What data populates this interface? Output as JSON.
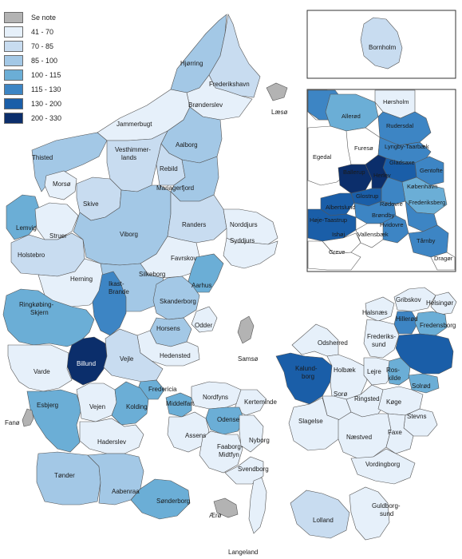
{
  "legend": {
    "items": [
      {
        "label": "Se note",
        "color": "#b3b3b3"
      },
      {
        "label": "41 - 70",
        "color": "#e6f0fa"
      },
      {
        "label": "70 - 85",
        "color": "#c8dcf0"
      },
      {
        "label": "85 - 100",
        "color": "#a3c8e6"
      },
      {
        "label": "100 - 115",
        "color": "#6baed6"
      },
      {
        "label": "115 - 130",
        "color": "#3d85c4"
      },
      {
        "label": "130 - 200",
        "color": "#1a5ea8"
      },
      {
        "label": "200 - 330",
        "color": "#0b2e6b"
      }
    ]
  },
  "labels": {
    "laeso": "Læsø",
    "hjorring": "Hjørring",
    "frederikshavn": "Frederikshavn",
    "bronderslev": "Brønderslev",
    "jammerbugt": "Jammerbugt",
    "thisted": "Thisted",
    "aalborg": "Aalborg",
    "vesthimmerlands1": "Vesthimmer-",
    "vesthimmerlands2": "lands",
    "rebild": "Rebild",
    "mariagerfjord": "Mariagerfjord",
    "morso": "Morsø",
    "skive": "Skive",
    "randers": "Randers",
    "norddjurs": "Norddjurs",
    "syddjurs": "Syddjurs",
    "lemvig": "Lemvig",
    "struer": "Struer",
    "viborg": "Viborg",
    "holstebro": "Holstebro",
    "favrskov": "Favrskov",
    "silkeborg": "Silkeborg",
    "herning": "Herning",
    "ikast1": "Ikast-",
    "ikast2": "Brande",
    "aarhus": "Aarhus",
    "skanderborg": "Skanderborg",
    "ringkobing1": "Ringkøbing-",
    "ringkobing2": "Skjern",
    "horsens": "Horsens",
    "odder": "Odder",
    "hedensted": "Hedensted",
    "samso": "Samsø",
    "billund": "Billund",
    "vejle": "Vejle",
    "varde": "Varde",
    "fredericia": "Fredericia",
    "esbjerg": "Esbjerg",
    "vejen": "Vejen",
    "kolding": "Kolding",
    "middelfart": "Middelfart",
    "nordfyns": "Nordfyns",
    "kerteminde": "Kerteminde",
    "odense": "Odense",
    "fano": "Fanø",
    "haderslev": "Haderslev",
    "assens": "Assens",
    "faaborg1": "Faaborg-",
    "faaborg2": "Midtfyn",
    "nyborg": "Nyborg",
    "svendborg": "Svendborg",
    "tonder": "Tønder",
    "aabenraa": "Aabenraa",
    "sonderborg": "Sønderborg",
    "aero": "Ærø",
    "langeland": "Langeland",
    "odsherred": "Odsherred",
    "gribskov": "Gribskov",
    "helsingor": "Helsingør",
    "halsnaes": "Halsnæs",
    "hillerod": "Hillerød",
    "fredensborg": "Fredensborg",
    "frederikssund1": "Frederiks-",
    "frederikssund2": "sund",
    "kalundborg1": "Kalund-",
    "kalundborg2": "borg",
    "holbaek": "Holbæk",
    "lejre": "Lejre",
    "roskilde1": "Ros-",
    "roskilde2": "kilde",
    "solrod": "Solrød",
    "soro": "Sorø",
    "ringsted": "Ringsted",
    "koge": "Køge",
    "slagelse": "Slagelse",
    "stevns": "Stevns",
    "naestved": "Næstved",
    "faxe": "Faxe",
    "vordingborg": "Vordingborg",
    "lolland": "Lolland",
    "guldborgsund1": "Guldborg-",
    "guldborgsund2": "sund",
    "bornholm": "Bornholm",
    "horsholm": "Hørsholm",
    "allerod": "Allerød",
    "rudersdal": "Rudersdal",
    "lyngby": "Lyngby-Taarbæk",
    "egedal": "Egedal",
    "furesoe": "Furesø",
    "gladsaxe": "Gladsaxe",
    "gentofte": "Gentofte",
    "ballerup": "Ballerup",
    "herlev": "Herlev",
    "kobenhavn": "København",
    "glostrup": "Glostrup",
    "albertslund": "Albertslund",
    "rodovre": "Rødovre",
    "frederiksberg": "Frederiksberg",
    "brondby": "Brøndby",
    "hoje_taastrup": "Høje-Taastrup",
    "hvidovre": "Hvidovre",
    "ishoj": "Ishøj",
    "vallensbaek": "Vallensbæk",
    "tarnby": "Tårnby",
    "greve": "Greve",
    "dragor": "Dragør"
  }
}
